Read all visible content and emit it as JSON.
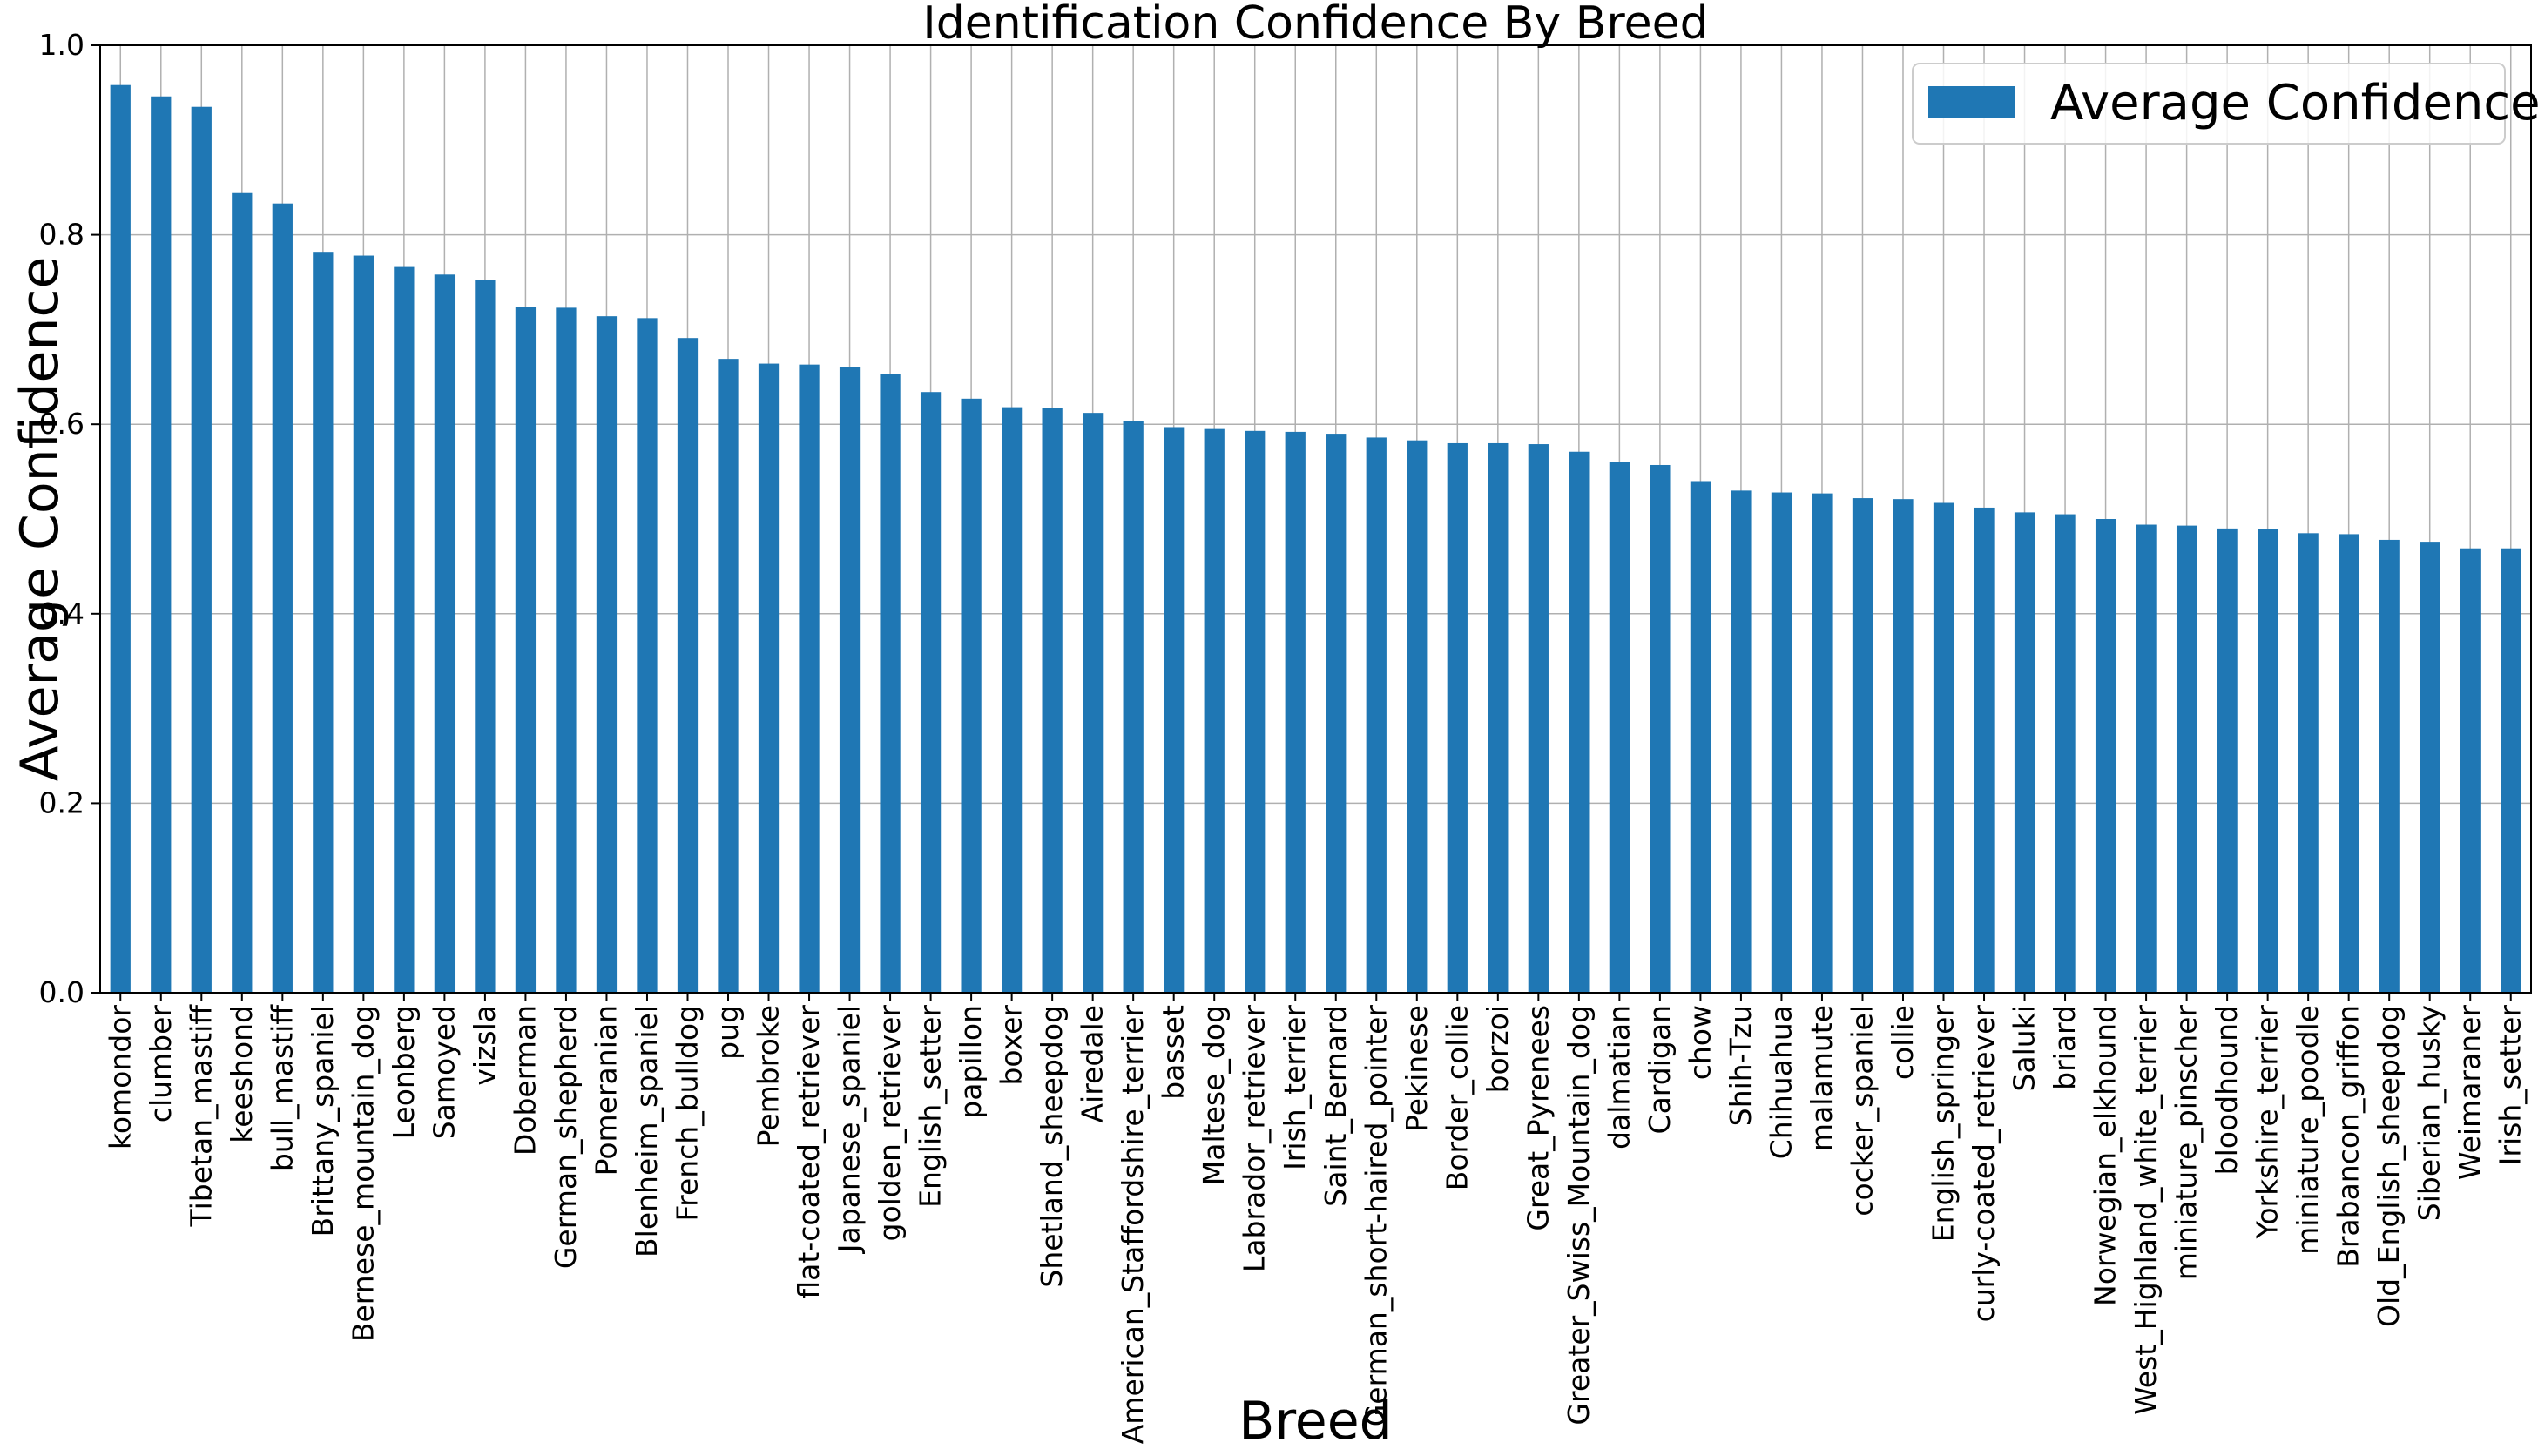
{
  "chart_data": {
    "type": "bar",
    "title": "Identification Confidence By Breed",
    "xlabel": "Breed",
    "ylabel": "Average Confidence",
    "ylim": [
      0,
      1.0
    ],
    "yticks": [
      "0.0",
      "0.2",
      "0.4",
      "0.6",
      "0.8",
      "1.0"
    ],
    "grid": true,
    "legend": {
      "placement": "top-right",
      "entries": [
        "Average Confidence"
      ]
    },
    "colors": {
      "bar": "#1f77b4",
      "grid": "#b0b0b0",
      "axis": "#000000"
    },
    "categories": [
      "komondor",
      "clumber",
      "Tibetan_mastiff",
      "keeshond",
      "bull_mastiff",
      "Brittany_spaniel",
      "Bernese_mountain_dog",
      "Leonberg",
      "Samoyed",
      "vizsla",
      "Doberman",
      "German_shepherd",
      "Pomeranian",
      "Blenheim_spaniel",
      "French_bulldog",
      "pug",
      "Pembroke",
      "flat-coated_retriever",
      "Japanese_spaniel",
      "golden_retriever",
      "English_setter",
      "papillon",
      "boxer",
      "Shetland_sheepdog",
      "Airedale",
      "American_Staffordshire_terrier",
      "basset",
      "Maltese_dog",
      "Labrador_retriever",
      "Irish_terrier",
      "Saint_Bernard",
      "German_short-haired_pointer",
      "Pekinese",
      "Border_collie",
      "borzoi",
      "Great_Pyrenees",
      "Greater_Swiss_Mountain_dog",
      "dalmatian",
      "Cardigan",
      "chow",
      "Shih-Tzu",
      "Chihuahua",
      "malamute",
      "cocker_spaniel",
      "collie",
      "English_springer",
      "curly-coated_retriever",
      "Saluki",
      "briard",
      "Norwegian_elkhound",
      "West_Highland_white_terrier",
      "miniature_pinscher",
      "bloodhound",
      "Yorkshire_terrier",
      "miniature_poodle",
      "Brabancon_griffon",
      "Old_English_sheepdog",
      "Siberian_husky",
      "Weimaraner",
      "Irish_setter"
    ],
    "series": [
      {
        "name": "Average Confidence",
        "values": [
          0.958,
          0.946,
          0.935,
          0.844,
          0.833,
          0.782,
          0.778,
          0.766,
          0.758,
          0.752,
          0.724,
          0.723,
          0.714,
          0.712,
          0.691,
          0.669,
          0.664,
          0.663,
          0.66,
          0.653,
          0.634,
          0.627,
          0.618,
          0.617,
          0.612,
          0.603,
          0.597,
          0.595,
          0.593,
          0.592,
          0.59,
          0.586,
          0.583,
          0.58,
          0.58,
          0.579,
          0.571,
          0.56,
          0.557,
          0.54,
          0.53,
          0.528,
          0.527,
          0.522,
          0.521,
          0.517,
          0.512,
          0.507,
          0.505,
          0.5,
          0.494,
          0.493,
          0.49,
          0.489,
          0.485,
          0.484,
          0.478,
          0.476,
          0.469,
          0.469
        ]
      }
    ]
  }
}
